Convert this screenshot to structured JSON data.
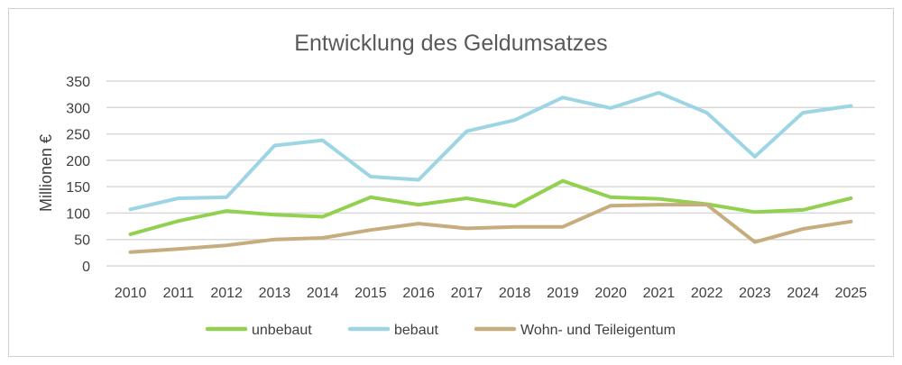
{
  "chart_data": {
    "type": "line",
    "title": "Entwicklung des Geldumsatzes",
    "ylabel": "Millionen €",
    "xlabel": "",
    "ylim": [
      0,
      350
    ],
    "yticks": [
      "0",
      "50",
      "100",
      "150",
      "200",
      "250",
      "300",
      "350"
    ],
    "categories": [
      "2010",
      "2011",
      "2012",
      "2013",
      "2014",
      "2015",
      "2016",
      "2017",
      "2018",
      "2019",
      "2020",
      "2021",
      "2022",
      "2023",
      "2024",
      "2025"
    ],
    "grid": true,
    "legend": "bottom",
    "series": [
      {
        "name": "unbebaut",
        "color": "#92d050",
        "values": [
          60,
          85,
          104,
          97,
          93,
          130,
          116,
          128,
          113,
          161,
          130,
          127,
          117,
          102,
          106,
          128
        ]
      },
      {
        "name": "bebaut",
        "color": "#9dd5e4",
        "values": [
          107,
          128,
          130,
          228,
          238,
          169,
          163,
          255,
          276,
          319,
          299,
          328,
          290,
          207,
          290,
          303
        ]
      },
      {
        "name": "Wohn- und Teileigentum",
        "color": "#c6ad7d",
        "values": [
          26,
          32,
          39,
          50,
          53,
          68,
          80,
          71,
          74,
          74,
          114,
          116,
          116,
          45,
          70,
          84
        ]
      }
    ]
  }
}
